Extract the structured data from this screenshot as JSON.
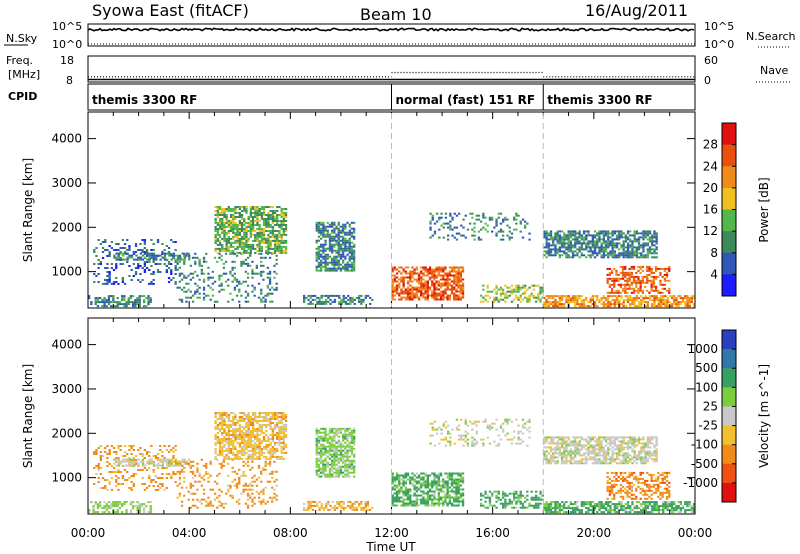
{
  "header": {
    "title": "Syowa East (fitACF)",
    "beam": "Beam 10",
    "date": "16/Aug/2011"
  },
  "nsky_panel": {
    "left_label": "N.Sky",
    "left_ticks": [
      "10^5",
      "10^0"
    ],
    "right_label": "N.Search",
    "right_ticks": [
      "10^5",
      "10^0"
    ]
  },
  "freq_panel": {
    "left_label_1": "Freq.",
    "left_label_2": "[MHz]",
    "left_ticks": [
      "18",
      "8"
    ],
    "right_label": "Nave",
    "right_ticks": [
      "60",
      "0"
    ]
  },
  "cpid": {
    "label": "CPID",
    "segments": [
      {
        "name": "themis 3300 RF",
        "start_hour": 0,
        "end_hour": 12
      },
      {
        "name": "normal (fast) 151 RF",
        "start_hour": 12,
        "end_hour": 18
      },
      {
        "name": "themis 3300 RF",
        "start_hour": 18,
        "end_hour": 24
      }
    ]
  },
  "x_axis": {
    "label": "Time UT",
    "ticks": [
      "00:00",
      "04:00",
      "08:00",
      "12:00",
      "16:00",
      "20:00",
      "00:00"
    ],
    "range_hours": [
      0,
      24
    ]
  },
  "range_axis": {
    "label": "Slant Range [km]",
    "ticks": [
      "1000",
      "2000",
      "3000",
      "4000"
    ],
    "range_km": [
      180,
      4600
    ]
  },
  "power_colorbar": {
    "label": "Power [dB]",
    "ticks": [
      "4",
      "8",
      "12",
      "16",
      "20",
      "24",
      "28"
    ],
    "colors": [
      "#1c1cff",
      "#2f56b8",
      "#3c8a5c",
      "#52b84a",
      "#f0c020",
      "#f08a18",
      "#e85010",
      "#e01010"
    ]
  },
  "velocity_colorbar": {
    "label": "Velocity [m s^-1]",
    "ticks": [
      "1000",
      "500",
      "100",
      "25",
      "-25",
      "-100",
      "-500",
      "-1000"
    ],
    "colors": [
      "#2a40c0",
      "#2f78a8",
      "#38a060",
      "#7ccc40",
      "#c8c8c8",
      "#f0c030",
      "#f08a18",
      "#f05010",
      "#e01010"
    ]
  },
  "chart_data": {
    "type": "heatmap",
    "panels": [
      {
        "name": "Power",
        "units": "dB",
        "blobs": [
          {
            "t0": 0.0,
            "t1": 2.5,
            "r0": 200,
            "r1": 450,
            "level": "mixed",
            "power_db": 8
          },
          {
            "t0": 0.2,
            "t1": 3.5,
            "r0": 700,
            "r1": 1700,
            "level": "sparse",
            "power_db": 6
          },
          {
            "t0": 1.0,
            "t1": 4.0,
            "r0": 1250,
            "r1": 1400,
            "level": "band",
            "power_db": 8
          },
          {
            "t0": 3.5,
            "t1": 7.5,
            "r0": 300,
            "r1": 1400,
            "level": "sparse",
            "power_db": 8
          },
          {
            "t0": 5.0,
            "t1": 7.8,
            "r0": 1400,
            "r1": 2450,
            "level": "dense",
            "power_db": 12
          },
          {
            "t0": 9.0,
            "t1": 10.5,
            "r0": 1000,
            "r1": 2100,
            "level": "dense",
            "power_db": 8
          },
          {
            "t0": 8.5,
            "t1": 11.2,
            "r0": 250,
            "r1": 450,
            "level": "mixed",
            "power_db": 8
          },
          {
            "t0": 12.0,
            "t1": 14.8,
            "r0": 350,
            "r1": 1100,
            "level": "dense",
            "power_db": 24
          },
          {
            "t0": 13.5,
            "t1": 17.5,
            "r0": 1700,
            "r1": 2300,
            "level": "sparse",
            "power_db": 8
          },
          {
            "t0": 15.5,
            "t1": 18.0,
            "r0": 300,
            "r1": 700,
            "level": "mixed",
            "power_db": 14
          },
          {
            "t0": 18.0,
            "t1": 22.5,
            "r0": 1300,
            "r1": 1900,
            "level": "dense",
            "power_db": 8
          },
          {
            "t0": 18.0,
            "t1": 24.0,
            "r0": 200,
            "r1": 450,
            "level": "dense",
            "power_db": 20
          },
          {
            "t0": 20.5,
            "t1": 23.0,
            "r0": 500,
            "r1": 1100,
            "level": "mixed",
            "power_db": 24
          }
        ]
      },
      {
        "name": "Velocity",
        "units": "m s^-1",
        "blobs": [
          {
            "t0": 0.0,
            "t1": 2.5,
            "r0": 200,
            "r1": 450,
            "level": "mixed",
            "velocity": 50
          },
          {
            "t0": 0.2,
            "t1": 3.5,
            "r0": 700,
            "r1": 1700,
            "level": "sparse",
            "velocity": -200
          },
          {
            "t0": 1.0,
            "t1": 4.0,
            "r0": 1250,
            "r1": 1400,
            "level": "band",
            "velocity": 0
          },
          {
            "t0": 3.5,
            "t1": 7.5,
            "r0": 300,
            "r1": 1400,
            "level": "sparse",
            "velocity": -200
          },
          {
            "t0": 5.0,
            "t1": 7.8,
            "r0": 1400,
            "r1": 2450,
            "level": "dense",
            "velocity": -60
          },
          {
            "t0": 9.0,
            "t1": 10.5,
            "r0": 1000,
            "r1": 2100,
            "level": "dense",
            "velocity": 60
          },
          {
            "t0": 8.5,
            "t1": 11.2,
            "r0": 250,
            "r1": 450,
            "level": "mixed",
            "velocity": -80
          },
          {
            "t0": 12.0,
            "t1": 14.8,
            "r0": 350,
            "r1": 1100,
            "level": "dense",
            "velocity": 120
          },
          {
            "t0": 13.5,
            "t1": 17.5,
            "r0": 1700,
            "r1": 2300,
            "level": "sparse",
            "velocity": 0
          },
          {
            "t0": 15.5,
            "t1": 18.0,
            "r0": 300,
            "r1": 700,
            "level": "mixed",
            "velocity": 200
          },
          {
            "t0": 18.0,
            "t1": 22.5,
            "r0": 1300,
            "r1": 1900,
            "level": "dense",
            "velocity": 0
          },
          {
            "t0": 18.0,
            "t1": 24.0,
            "r0": 200,
            "r1": 450,
            "level": "dense",
            "velocity": 150
          },
          {
            "t0": 20.5,
            "t1": 23.0,
            "r0": 500,
            "r1": 1100,
            "level": "mixed",
            "velocity": -300
          }
        ]
      }
    ],
    "nave_series": [
      {
        "t0": 0,
        "t1": 12,
        "nave": 12
      },
      {
        "t0": 12,
        "t1": 18,
        "nave": 22
      },
      {
        "t0": 18,
        "t1": 24,
        "nave": 12
      }
    ],
    "freq_mhz": 10.5,
    "nsky_level": 0.75
  }
}
